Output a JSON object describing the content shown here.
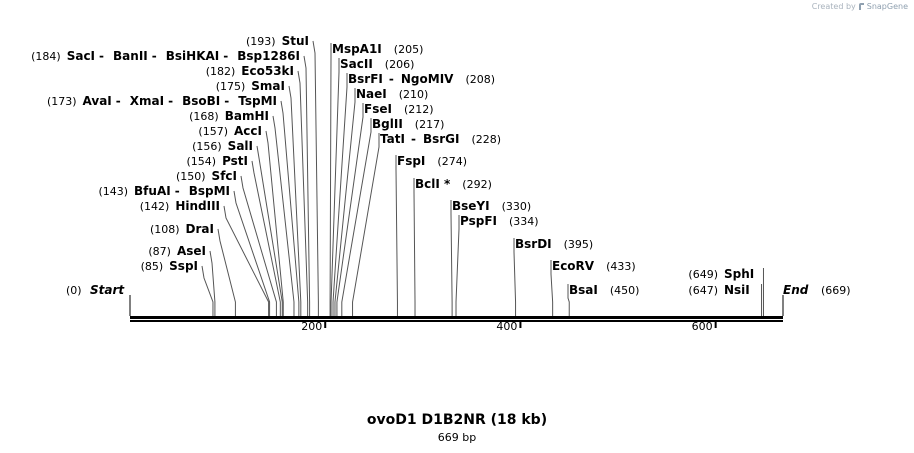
{
  "credit": {
    "prefix": "Created by",
    "brand": "SnapGene"
  },
  "title": "ovoD1 D1B2NR (18 kb)",
  "subtitle": "669 bp",
  "sequence_length": 669,
  "ticks": [
    "200",
    "400",
    "600"
  ],
  "tick_values": [
    200,
    400,
    600
  ],
  "start_label": {
    "name": "Start",
    "pos": "(0)"
  },
  "end_label": {
    "name": "End",
    "pos": "(669)"
  },
  "left_sites": [
    {
      "pos": "(85)",
      "names": [
        "SspI"
      ],
      "cut": 85
    },
    {
      "pos": "(87)",
      "names": [
        "AseI"
      ],
      "cut": 87
    },
    {
      "pos": "(108)",
      "names": [
        "DraI"
      ],
      "cut": 108
    },
    {
      "pos": "(142)",
      "names": [
        "HindIII"
      ],
      "cut": 142
    },
    {
      "pos": "(143)",
      "names": [
        "BfuAI",
        "BspMI"
      ],
      "cut": 143
    },
    {
      "pos": "(150)",
      "names": [
        "SfcI"
      ],
      "cut": 150
    },
    {
      "pos": "(154)",
      "names": [
        "PstI"
      ],
      "cut": 154
    },
    {
      "pos": "(156)",
      "names": [
        "SalI"
      ],
      "cut": 156
    },
    {
      "pos": "(157)",
      "names": [
        "AccI"
      ],
      "cut": 157
    },
    {
      "pos": "(168)",
      "names": [
        "BamHI"
      ],
      "cut": 168
    },
    {
      "pos": "(173)",
      "names": [
        "AvaI",
        "XmaI",
        "BsoBI",
        "TspMI"
      ],
      "cut": 173
    },
    {
      "pos": "(175)",
      "names": [
        "SmaI"
      ],
      "cut": 175
    },
    {
      "pos": "(182)",
      "names": [
        "Eco53kI"
      ],
      "cut": 182
    },
    {
      "pos": "(184)",
      "names": [
        "SacI",
        "BanII",
        "BsiHKAI",
        "Bsp1286I"
      ],
      "cut": 184
    },
    {
      "pos": "(193)",
      "names": [
        "StuI"
      ],
      "cut": 193
    }
  ],
  "right_sites": [
    {
      "pos": "(205)",
      "names": [
        "MspA1I"
      ],
      "cut": 205
    },
    {
      "pos": "(206)",
      "names": [
        "SacII"
      ],
      "cut": 206
    },
    {
      "pos": "(208)",
      "names": [
        "BsrFI",
        "NgoMIV"
      ],
      "cut": 208
    },
    {
      "pos": "(210)",
      "names": [
        "NaeI"
      ],
      "cut": 210
    },
    {
      "pos": "(212)",
      "names": [
        "FseI"
      ],
      "cut": 212
    },
    {
      "pos": "(217)",
      "names": [
        "BglII"
      ],
      "cut": 217
    },
    {
      "pos": "(228)",
      "names": [
        "TatI",
        "BsrGI"
      ],
      "cut": 228
    },
    {
      "pos": "(274)",
      "names": [
        "FspI"
      ],
      "cut": 274
    },
    {
      "pos": "(292)",
      "names": [
        "BclI *"
      ],
      "cut": 292
    },
    {
      "pos": "(330)",
      "names": [
        "BseYI"
      ],
      "cut": 330
    },
    {
      "pos": "(334)",
      "names": [
        "PspFI"
      ],
      "cut": 334
    },
    {
      "pos": "(395)",
      "names": [
        "BsrDI"
      ],
      "cut": 395
    },
    {
      "pos": "(433)",
      "names": [
        "EcoRV"
      ],
      "cut": 433
    },
    {
      "pos": "(450)",
      "names": [
        "BsaI"
      ],
      "cut": 450
    },
    {
      "pos": "(647)",
      "names": [
        "NsiI"
      ],
      "cut": 647
    },
    {
      "pos": "(649)",
      "names": [
        "SphI"
      ],
      "cut": 649
    }
  ]
}
